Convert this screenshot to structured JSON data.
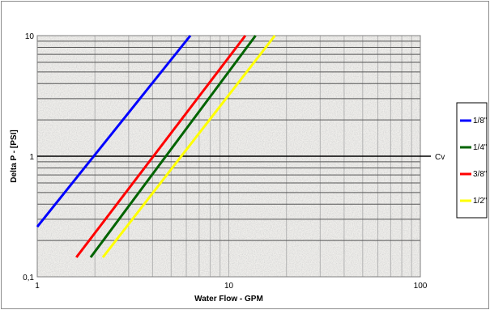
{
  "chart_data": {
    "type": "line",
    "xscale": "log",
    "yscale": "log",
    "xlim": [
      1,
      100
    ],
    "ylim": [
      0.1,
      10
    ],
    "xlabel": "Water Flow - GPM",
    "ylabel": "Delta P - [PSI]",
    "x_ticks": [
      "1",
      "10",
      "100"
    ],
    "y_ticks": [
      "0,1",
      "1",
      "10"
    ],
    "grid": true,
    "legend_position": "right",
    "reference_line": {
      "label": "Cv",
      "y": 1
    },
    "series": [
      {
        "name": "1/8\"",
        "color": "#0000ff",
        "x": [
          1.0,
          6.3
        ],
        "y": [
          0.26,
          10.0
        ]
      },
      {
        "name": "1/4\"",
        "color": "#006400",
        "x": [
          1.9,
          13.8
        ],
        "y": [
          0.145,
          10.0
        ]
      },
      {
        "name": "3/8\"",
        "color": "#ff0000",
        "x": [
          1.6,
          12.2
        ],
        "y": [
          0.145,
          10.0
        ]
      },
      {
        "name": "1/2\"",
        "color": "#ffff00",
        "x": [
          2.2,
          17.4
        ],
        "y": [
          0.145,
          10.0
        ]
      }
    ]
  }
}
